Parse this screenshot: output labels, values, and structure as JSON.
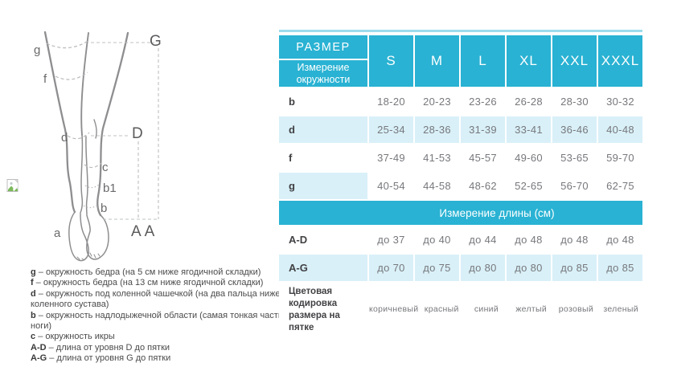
{
  "colors": {
    "accent_cyan": "#29b2d3",
    "row_shade": "#d9f0f8",
    "top_border": "#9ddcec",
    "value_text": "#77787c",
    "label_text": "#414144"
  },
  "diagram": {
    "labels": {
      "g": "g",
      "f": "f",
      "d": "d",
      "c": "c",
      "b1": "b1",
      "b": "b",
      "a": "a",
      "G": "G",
      "D": "D",
      "AA": "AA"
    },
    "legend": [
      {
        "key": "g",
        "desc": "– окружность бедра (на 5 см ниже ягодичной складки)"
      },
      {
        "key": "f",
        "desc": "– окружность бедра (на 13 см ниже ягодичной складки)"
      },
      {
        "key": "d",
        "desc": "– окружность под коленной чашечкой (на два пальца ниже коленного сустава)"
      },
      {
        "key": "b",
        "desc": "– окружность надлодыжечной области (самая тонкая часть ноги)"
      },
      {
        "key": "c",
        "desc": "– окружность икры"
      },
      {
        "key": "A-D",
        "desc": "– длина от уровня D до пятки"
      },
      {
        "key": "A-G",
        "desc": "– длина от уровня G до пятки"
      }
    ]
  },
  "chart_data": {
    "type": "table",
    "header": {
      "size_label": "РАЗМЕР",
      "measure_label": "Измерение окружности"
    },
    "columns": [
      "S",
      "M",
      "L",
      "XL",
      "XXL",
      "XXXL"
    ],
    "circumference_rows": [
      {
        "label": "b",
        "shade": "none",
        "values": [
          "18-20",
          "20-23",
          "23-26",
          "26-28",
          "28-30",
          "30-32"
        ]
      },
      {
        "label": "d",
        "shade": "full",
        "values": [
          "25-34",
          "28-36",
          "31-39",
          "33-41",
          "36-46",
          "40-48"
        ]
      },
      {
        "label": "f",
        "shade": "none",
        "values": [
          "37-49",
          "41-53",
          "45-57",
          "49-60",
          "53-65",
          "59-70"
        ]
      },
      {
        "label": "g",
        "shade": "label",
        "values": [
          "40-54",
          "44-58",
          "48-62",
          "52-65",
          "56-70",
          "62-75"
        ]
      }
    ],
    "length_section_title": "Измерение длины (см)",
    "length_rows": [
      {
        "label": "A-D",
        "shade": "none",
        "values": [
          "до 37",
          "до 40",
          "до 44",
          "до 48",
          "до 48",
          "до 48"
        ]
      },
      {
        "label": "A-G",
        "shade": "full",
        "values": [
          "до 70",
          "до 75",
          "до 80",
          "до 80",
          "до 85",
          "до 85"
        ]
      }
    ],
    "heel_color_row": {
      "label": "Цветовая кодировка размера на пятке",
      "values": [
        "коричневый",
        "красный",
        "синий",
        "желтый",
        "розовый",
        "зеленый"
      ]
    }
  }
}
